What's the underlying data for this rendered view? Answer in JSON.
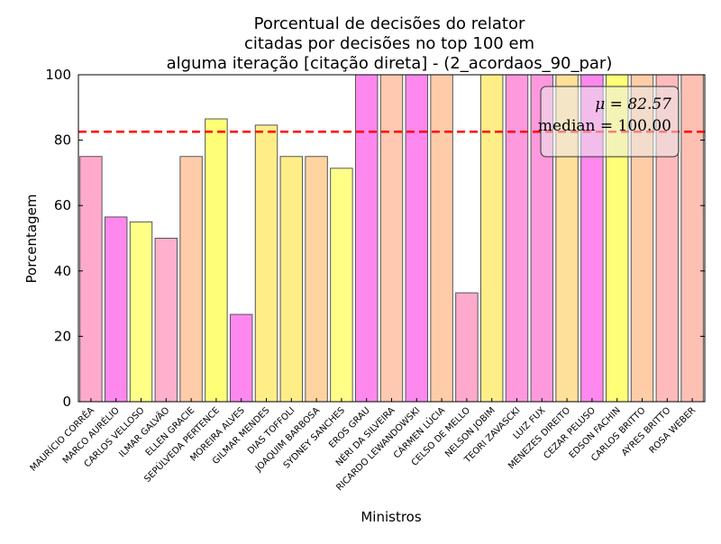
{
  "chart_data": {
    "type": "bar",
    "title_lines": [
      "Porcentual de decisões do relator",
      "citadas por decisões no top 100 em",
      "alguma iteração [citação direta] - (2_acordaos_90_par)"
    ],
    "xlabel": "Ministros",
    "ylabel": "Porcentagem",
    "ylim": [
      0,
      100
    ],
    "yticks": [
      0,
      20,
      40,
      60,
      80,
      100
    ],
    "grid": false,
    "legend": "top-right",
    "mean_line": {
      "value": 82.57,
      "color": "#ff0000",
      "style": "dashed"
    },
    "stats_box": {
      "mu_label": "μ = 82.57",
      "median_label": "median = 100.00"
    },
    "categories": [
      "MAURÍCIO CORRÊA",
      "MARCO AURÉLIO",
      "CARLOS VELLOSO",
      "ILMAR GALVÃO",
      "ELLEN GRACIE",
      "SEPÚLVEDA PERTENCE",
      "MOREIRA ALVES",
      "GILMAR MENDES",
      "DIAS TOFFOLI",
      "JOAQUIM BARBOSA",
      "SYDNEY SANCHES",
      "EROS GRAU",
      "NÉRI DA SILVEIRA",
      "RICARDO LEWANDOWSKI",
      "CÁRMEN LÚCIA",
      "CELSO DE MELLO",
      "NELSON JOBIM",
      "TEORI ZAVASCKI",
      "LUIZ FUX",
      "MENEZES DIREITO",
      "CEZAR PELUSO",
      "EDSON FACHIN",
      "CARLOS BRITTO",
      "AYRES BRITTO",
      "ROSA WEBER"
    ],
    "values": [
      75.0,
      56.5,
      55.0,
      50.0,
      75.0,
      86.5,
      26.7,
      84.6,
      75.0,
      75.0,
      71.4,
      100,
      100,
      100,
      100,
      33.3,
      100,
      100,
      100,
      100,
      100,
      100,
      100,
      100,
      100
    ],
    "colors": [
      "#ffaacc",
      "#ff88ee",
      "#ffff88",
      "#ffb0cc",
      "#ffccaa",
      "#ffff77",
      "#ff88ee",
      "#ffee88",
      "#ffee88",
      "#ffd4a0",
      "#ffff88",
      "#ff88ee",
      "#ffc8b0",
      "#ff88ee",
      "#ffccaa",
      "#ffaacc",
      "#ffee88",
      "#ff99dd",
      "#ff99dd",
      "#ffe099",
      "#ff88ee",
      "#ffff77",
      "#ffcca8",
      "#ffbbbb",
      "#ffc0b4"
    ]
  }
}
